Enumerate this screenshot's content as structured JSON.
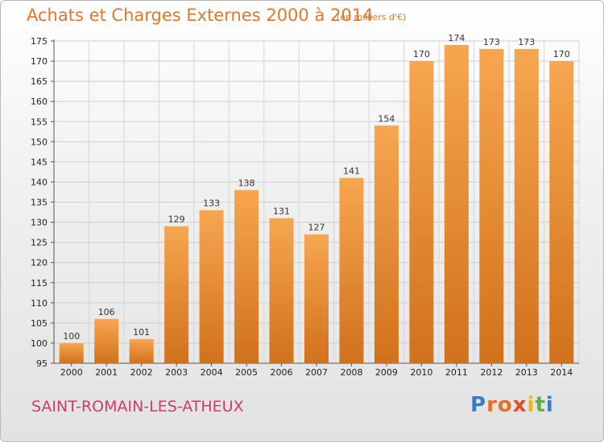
{
  "chart_data": {
    "type": "bar",
    "title": "Achats et Charges Externes 2000 à 2014",
    "subtitle": "(en milliers d'€)",
    "categories": [
      "2000",
      "2001",
      "2002",
      "2003",
      "2004",
      "2005",
      "2006",
      "2007",
      "2008",
      "2009",
      "2010",
      "2011",
      "2012",
      "2013",
      "2014"
    ],
    "values": [
      100,
      106,
      101,
      129,
      133,
      138,
      131,
      127,
      141,
      154,
      170,
      174,
      173,
      173,
      170
    ],
    "ylim": [
      95,
      175
    ],
    "yticks": [
      95,
      100,
      105,
      110,
      115,
      120,
      125,
      130,
      135,
      140,
      145,
      150,
      155,
      160,
      165,
      170,
      175
    ],
    "grid": true,
    "colors": {
      "bar_light": "#f6a44f",
      "bar_dark": "#d2721a",
      "title": "#e0782c"
    }
  },
  "commune": "SAINT-ROMAIN-LES-ATHEUX",
  "logo": {
    "text": "Proxiti",
    "letters": [
      "P",
      "r",
      "o",
      "x",
      "i",
      "t",
      "i"
    ]
  }
}
